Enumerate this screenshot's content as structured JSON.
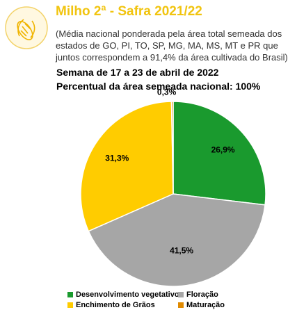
{
  "header": {
    "title": "Milho 2ª - Safra 2021/22",
    "subtitle": "(Média nacional ponderada pela área total semeada dos estados de GO, PI, TO, SP, MG, MA, MS, MT e PR que juntos correspondem a 91,4% da área cultivada do Brasil)",
    "week": "Semana de 17 a 23 de abril de 2022",
    "area_line": "Percentual da área semeada nacional: 100%"
  },
  "chart_data": {
    "type": "pie",
    "categories": [
      "Desenvolvimento vegetativo",
      "Floração",
      "Enchimento de Grãos",
      "Maturação"
    ],
    "values": [
      26.9,
      41.5,
      31.3,
      0.3
    ],
    "labels": [
      "26,9%",
      "41,5%",
      "31,3%",
      "0,3%"
    ],
    "colors": [
      "#1a9a2e",
      "#a6a6a6",
      "#ffcc00",
      "#e08a00"
    ],
    "title": "",
    "legend_position": "bottom"
  },
  "legend": {
    "items": [
      {
        "label": "Desenvolvimento vegetativo",
        "color": "#1a9a2e"
      },
      {
        "label": "Floração",
        "color": "#a6a6a6"
      },
      {
        "label": "Enchimento de Grãos",
        "color": "#ffcc00"
      },
      {
        "label": "Maturação",
        "color": "#e08a00"
      }
    ]
  },
  "icons": {
    "logo": "corn-icon"
  }
}
